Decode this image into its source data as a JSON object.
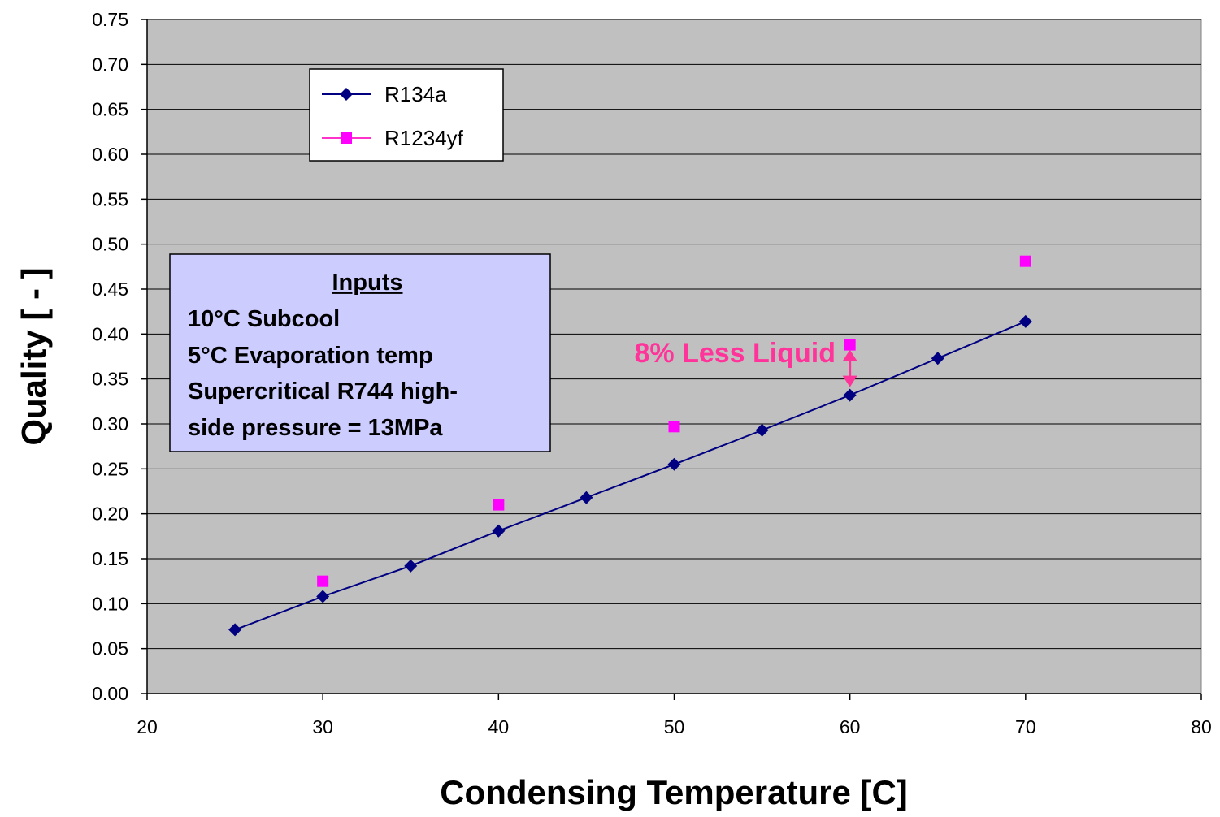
{
  "chart_data": {
    "type": "scatter",
    "xlabel": "Condensing Temperature [C]",
    "ylabel": "Quality [ - ]",
    "xlim": [
      20,
      80
    ],
    "ylim": [
      0,
      0.75
    ],
    "x_ticks": [
      "20",
      "30",
      "40",
      "50",
      "60",
      "70",
      "80"
    ],
    "y_ticks": [
      "0.00",
      "0.05",
      "0.10",
      "0.15",
      "0.20",
      "0.25",
      "0.30",
      "0.35",
      "0.40",
      "0.45",
      "0.50",
      "0.55",
      "0.60",
      "0.65",
      "0.70",
      "0.75"
    ],
    "grid": "horizontal",
    "plot_background": "#c0c0c0",
    "legend_position": "top-left",
    "series": [
      {
        "name": "R134a",
        "style": "line-with-diamond-markers",
        "color": "#000080",
        "x": [
          25,
          30,
          35,
          40,
          45,
          50,
          55,
          60,
          65,
          70
        ],
        "y": [
          0.071,
          0.108,
          0.142,
          0.181,
          0.218,
          0.255,
          0.293,
          0.332,
          0.373,
          0.414
        ]
      },
      {
        "name": "R1234yf",
        "style": "square-markers",
        "color": "#ff00ff",
        "x": [
          30,
          40,
          50,
          60,
          70
        ],
        "y": [
          0.125,
          0.21,
          0.297,
          0.388,
          0.481
        ]
      }
    ],
    "inputs_box": {
      "title": "Inputs",
      "lines": [
        "10°C Subcool",
        "5°C Evaporation temp",
        "Supercritical R744 high-",
        "side pressure = 13MPa"
      ],
      "background": "#ccccff"
    },
    "annotation": {
      "text": "8% Less Liquid",
      "color": "#ff3399",
      "x": 60,
      "y_from": 0.388,
      "y_to": 0.332
    }
  }
}
